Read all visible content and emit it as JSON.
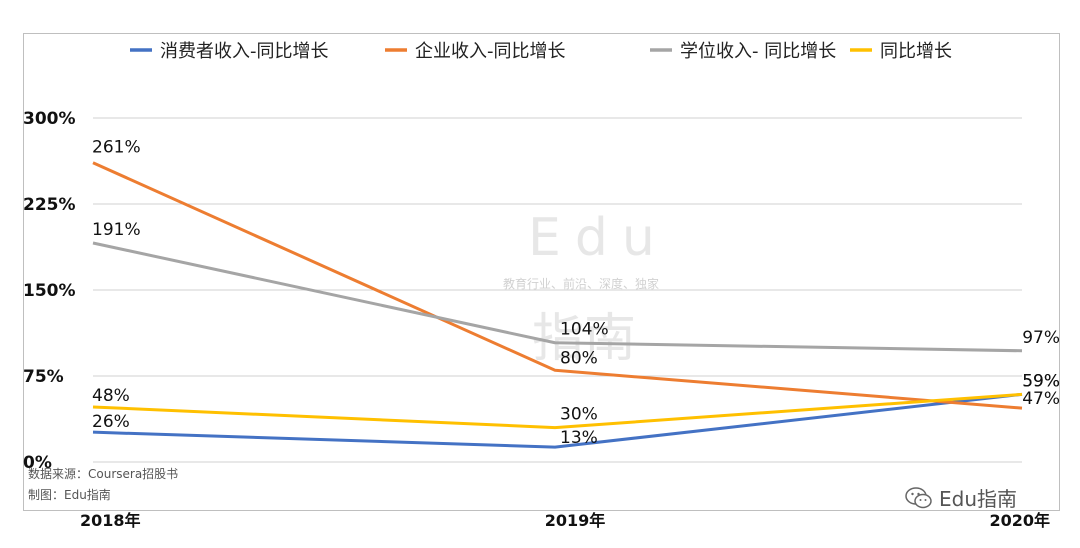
{
  "chart_data": {
    "type": "line",
    "categories": [
      "2018年",
      "2019年",
      "2020年"
    ],
    "y_ticks": [
      "300%",
      "225%",
      "150%",
      "75%",
      "0%"
    ],
    "ylim": [
      0,
      300
    ],
    "grid": true,
    "legend_position": "top",
    "series": [
      {
        "name": "消费者收入-同比增长",
        "values": [
          26,
          13,
          59
        ],
        "labels": [
          "26%",
          "13%",
          "59%"
        ],
        "color": "#4472C4"
      },
      {
        "name": "企业收入-同比增长",
        "values": [
          261,
          80,
          47
        ],
        "labels": [
          "261%",
          "80%",
          "47%"
        ],
        "color": "#ED7D31"
      },
      {
        "name": "学位收入- 同比增长",
        "values": [
          191,
          104,
          97
        ],
        "labels": [
          "191%",
          "104%",
          "97%"
        ],
        "color": "#A5A5A5"
      },
      {
        "name": "同比增长",
        "values": [
          48,
          30,
          59
        ],
        "labels": [
          "48%",
          "30%",
          "59%"
        ],
        "color": "#FFC000"
      }
    ]
  },
  "notes": {
    "source": "数据来源：Coursera招股书",
    "maker": "制图：Edu指南"
  },
  "watermark": {
    "main": "Edu",
    "sub": "教育行业、前沿、深度、独家",
    "cn": "指南"
  },
  "brand": {
    "text": "Edu指南",
    "icon": "wechat-icon"
  }
}
